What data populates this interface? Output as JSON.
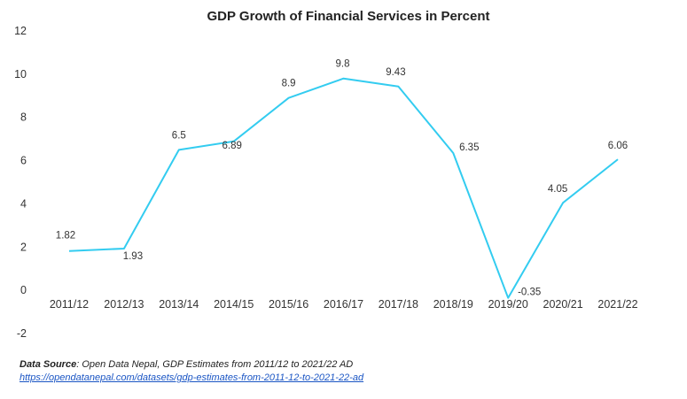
{
  "chart_data": {
    "type": "line",
    "title": "GDP Growth of Financial Services in Percent",
    "xlabel": "",
    "ylabel": "",
    "categories": [
      "2011/12",
      "2012/13",
      "2013/14",
      "2014/15",
      "2015/16",
      "2016/17",
      "2017/18",
      "2018/19",
      "2019/20",
      "2020/21",
      "2021/22"
    ],
    "values": [
      1.82,
      1.93,
      6.5,
      6.89,
      8.9,
      9.8,
      9.43,
      6.35,
      -0.35,
      4.05,
      6.06
    ],
    "data_labels": [
      "1.82",
      "1.93",
      "6.5",
      "6.89",
      "8.9",
      "9.8",
      "9.43",
      "6.35",
      "-0.35",
      "4.05",
      "6.06"
    ],
    "ylim": [
      -2,
      12
    ],
    "yticks": [
      -2,
      0,
      2,
      4,
      6,
      8,
      10,
      12
    ],
    "grid": false,
    "legend": "none",
    "line_color": "#33ccf0"
  },
  "source": {
    "label": "Data Source",
    "text": ": Open Data Nepal,  GDP Estimates from 2011/12 to 2021/22 AD",
    "link": "https://opendatanepal.com/datasets/gdp-estimates-from-2011-12-to-2021-22-ad"
  }
}
